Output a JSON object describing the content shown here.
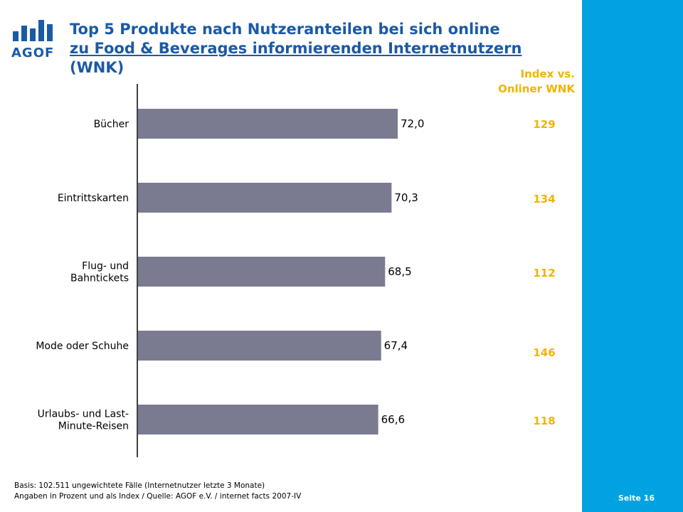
{
  "logo": {
    "text": "AGOF"
  },
  "title": {
    "line1": "Top 5 Produkte nach Nutzeranteilen bei sich online",
    "line2": "zu Food & Beverages informierenden Internetnutzern",
    "line3": "(WNK)"
  },
  "index_header": {
    "line1": "Index vs.",
    "line2": "Onliner WNK"
  },
  "chart_data": {
    "type": "bar",
    "orientation": "horizontal",
    "categories": [
      [
        "Bücher"
      ],
      [
        "Eintrittskarten"
      ],
      [
        "Flug- und",
        "Bahntickets"
      ],
      [
        "Mode oder Schuhe"
      ],
      [
        "Urlaubs- und Last-",
        "Minute-Reisen"
      ]
    ],
    "values": [
      72.0,
      70.3,
      68.5,
      67.4,
      66.6
    ],
    "value_labels": [
      "72,0",
      "70,3",
      "68,5",
      "67,4",
      "66,6"
    ],
    "index_values": [
      "129",
      "134",
      "112",
      "146",
      "118"
    ],
    "bar_color": "#7a7b91",
    "grid": false
  },
  "footnote": {
    "line1": "Basis: 102.511 ungewichtete Fälle (Internetnutzer letzte 3 Monate)",
    "line2": "Angaben in Prozent und als Index / Quelle: AGOF e.V. / internet facts 2007-IV"
  },
  "page": {
    "label": "Seite 16"
  },
  "colors": {
    "accent_blue": "#00a3e0",
    "title_blue": "#1a5aa6",
    "index_gold": "#f0b400"
  }
}
